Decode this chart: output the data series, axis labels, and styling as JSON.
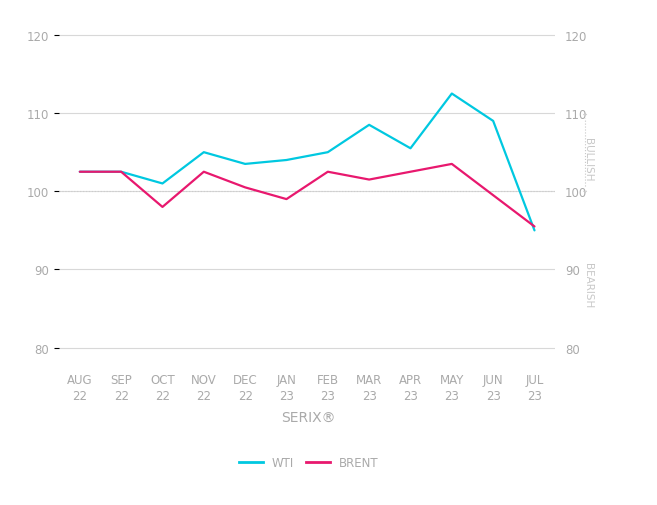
{
  "x_labels": [
    "AUG\n22",
    "SEP\n22",
    "OCT\n22",
    "NOV\n22",
    "DEC\n22",
    "JAN\n23",
    "FEB\n23",
    "MAR\n23",
    "APR\n23",
    "MAY\n23",
    "JUN\n23",
    "JUL\n23"
  ],
  "wti": [
    102.5,
    102.5,
    101.0,
    105.0,
    103.5,
    104.0,
    105.0,
    108.5,
    105.5,
    112.5,
    109.0,
    95.0
  ],
  "brent": [
    102.5,
    102.5,
    98.0,
    102.5,
    100.5,
    99.0,
    102.5,
    101.5,
    102.5,
    103.5,
    99.5,
    95.5
  ],
  "wti_color": "#00c8e0",
  "brent_color": "#e8186e",
  "ref_line_color": "#cccccc",
  "grid_color": "#d8d8d8",
  "bg_color": "#ffffff",
  "ylim": [
    78,
    122
  ],
  "yticks": [
    80,
    90,
    100,
    110,
    120
  ],
  "xlabel": "SERIX®",
  "right_label_bullish": "BULLISH",
  "right_label_bearish": "BEARISH",
  "right_label_color": "#c8c8c8",
  "legend_wti": "WTI",
  "legend_brent": "BRENT",
  "tick_fontsize": 8.5,
  "xlabel_fontsize": 10,
  "legend_fontsize": 8.5,
  "axis_label_color": "#aaaaaa",
  "line_width": 1.6
}
